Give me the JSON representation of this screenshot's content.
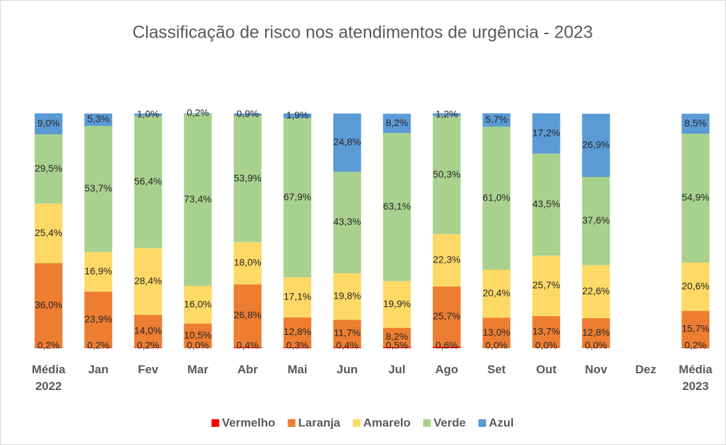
{
  "chart_data": {
    "type": "stacked_bar",
    "title": "Classificação de risco nos atendimentos de urgência - 2023",
    "categories": [
      "Média 2022",
      "Jan",
      "Fev",
      "Mar",
      "Abr",
      "Mai",
      "Jun",
      "Jul",
      "Ago",
      "Set",
      "Out",
      "Nov",
      "Dez",
      "Média 2023"
    ],
    "ylim": [
      0,
      100
    ],
    "legend": "bottom",
    "series": [
      {
        "name": "Vermelho",
        "color": "#ff0000",
        "values": [
          0.2,
          0.2,
          0.2,
          0.0,
          0.4,
          0.3,
          0.4,
          0.5,
          0.6,
          0.0,
          0.0,
          0.0,
          null,
          0.2
        ],
        "value_labels": [
          "0,2%",
          "0,2%",
          "0,2%",
          "0,0%",
          "0,4%",
          "0,3%",
          "0,4%",
          "0,5%",
          "0,6%",
          "0,0%",
          "0,0%",
          "0,0%",
          null,
          "0,2%"
        ]
      },
      {
        "name": "Laranja",
        "color": "#ed7d31",
        "values": [
          36.0,
          23.9,
          14.0,
          10.5,
          26.8,
          12.8,
          11.7,
          8.2,
          25.7,
          13.0,
          13.7,
          12.8,
          null,
          15.7
        ],
        "value_labels": [
          "36,0%",
          "23,9%",
          "14,0%",
          "10,5%",
          "26,8%",
          "12,8%",
          "11,7%",
          "8,2%",
          "25,7%",
          "13,0%",
          "13,7%",
          "12,8%",
          null,
          "15,7%"
        ]
      },
      {
        "name": "Amarelo",
        "color": "#ffd966",
        "values": [
          25.4,
          16.9,
          28.4,
          16.0,
          18.0,
          17.1,
          19.8,
          19.9,
          22.3,
          20.4,
          25.7,
          22.6,
          null,
          20.6
        ],
        "value_labels": [
          "25,4%",
          "16,9%",
          "28,4%",
          "16,0%",
          "18,0%",
          "17,1%",
          "19,8%",
          "19,9%",
          "22,3%",
          "20,4%",
          "25,7%",
          "22,6%",
          null,
          "20,6%"
        ]
      },
      {
        "name": "Verde",
        "color": "#a9d18e",
        "values": [
          29.5,
          53.7,
          56.4,
          73.4,
          53.9,
          67.9,
          43.3,
          63.1,
          50.3,
          61.0,
          43.5,
          37.6,
          null,
          54.9
        ],
        "value_labels": [
          "29,5%",
          "53,7%",
          "56,4%",
          "73,4%",
          "53,9%",
          "67,9%",
          "43,3%",
          "63,1%",
          "50,3%",
          "61,0%",
          "43,5%",
          "37,6%",
          null,
          "54,9%"
        ]
      },
      {
        "name": "Azul",
        "color": "#5b9bd5",
        "values": [
          9.0,
          5.3,
          1.0,
          0.2,
          0.9,
          1.9,
          24.8,
          8.2,
          1.2,
          5.7,
          17.2,
          26.9,
          null,
          8.5
        ],
        "value_labels": [
          "9,0%",
          "5,3%",
          "1,0%",
          "0,2%",
          "0,9%",
          "1,9%",
          "24,8%",
          "8,2%",
          "1,2%",
          "5,7%",
          "17,2%",
          "26,9%",
          null,
          "8,5%"
        ]
      }
    ]
  }
}
